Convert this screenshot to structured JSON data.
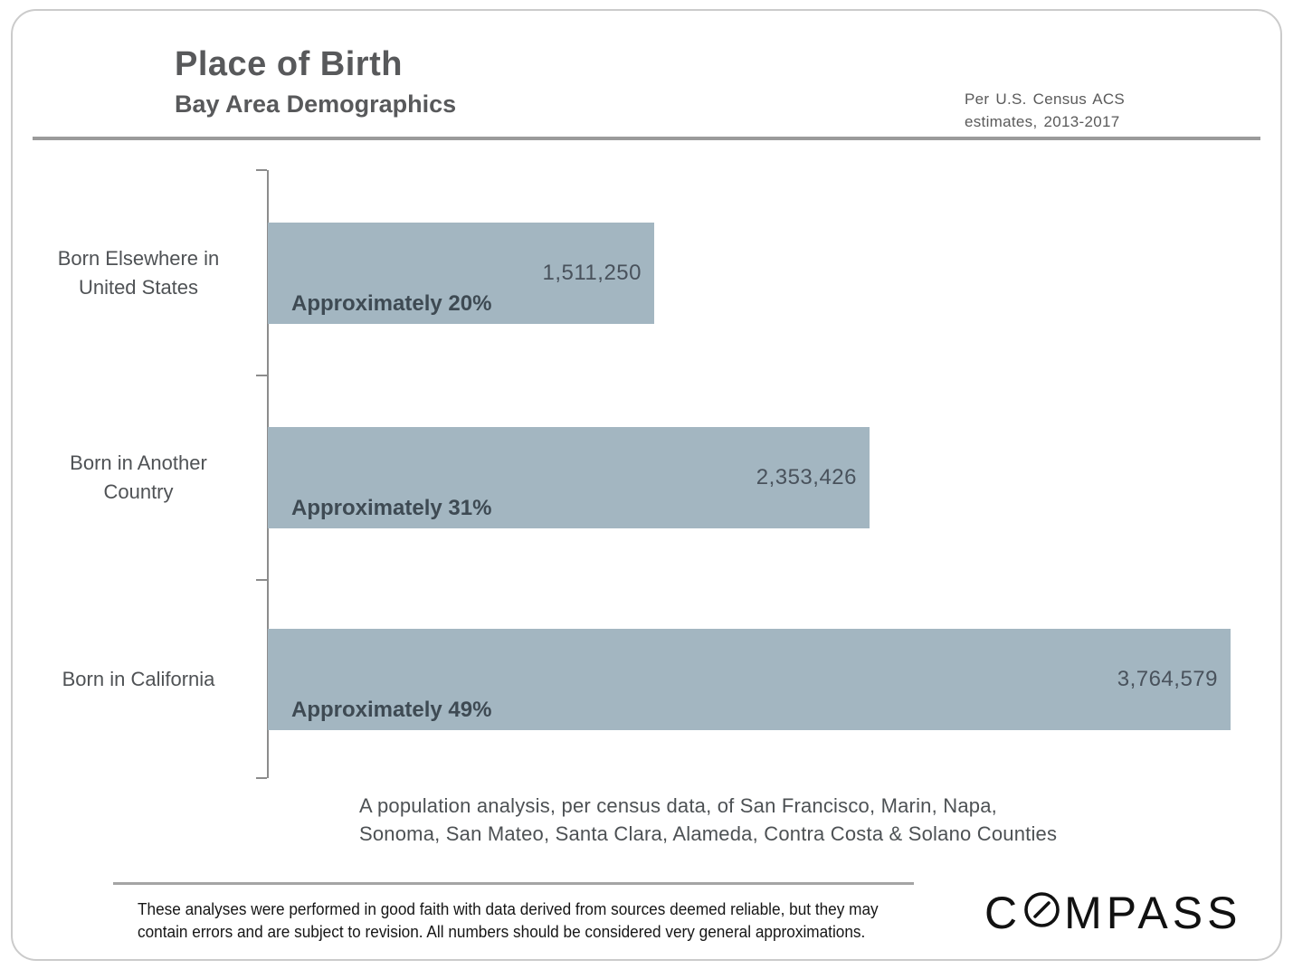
{
  "header": {
    "title": "Place of Birth",
    "subtitle": "Bay Area Demographics",
    "source_line1": "Per U.S. Census ACS",
    "source_line2": "estimates, 2013-2017"
  },
  "chart_data": {
    "type": "bar",
    "orientation": "horizontal",
    "title": "Place of Birth",
    "subtitle": "Bay Area Demographics",
    "categories": [
      "Born Elsewhere in United States",
      "Born in Another Country",
      "Born in California"
    ],
    "category_lines": [
      [
        "Born Elsewhere in",
        "United States"
      ],
      [
        "Born in Another",
        "Country"
      ],
      [
        "Born in California"
      ]
    ],
    "values": [
      1511250,
      2353426,
      3764579
    ],
    "value_labels": [
      "1,511,250",
      "2,353,426",
      "3,764,579"
    ],
    "percent_values": [
      20,
      31,
      49
    ],
    "percent_labels": [
      "Approximately 20%",
      "Approximately 31%",
      "Approximately 49%"
    ],
    "xlim": [
      0,
      3764579
    ],
    "grid": false,
    "legend": false,
    "bar_color": "#a3b6c1",
    "axis_color": "#8c8c8c"
  },
  "footnote": {
    "line1": "A population analysis, per census data, of San Francisco, Marin, Napa,",
    "line2": "Sonoma, San Mateo, Santa Clara, Alameda, Contra Costa & Solano Counties"
  },
  "disclaimer": {
    "line1": "These analyses were performed in good faith with data derived from sources deemed reliable, but they may",
    "line2": "contain errors and are subject to revision.  All numbers should be considered very general approximations."
  },
  "logo": {
    "name": "COMPASS",
    "text_before": "C",
    "text_after": "MPASS"
  }
}
